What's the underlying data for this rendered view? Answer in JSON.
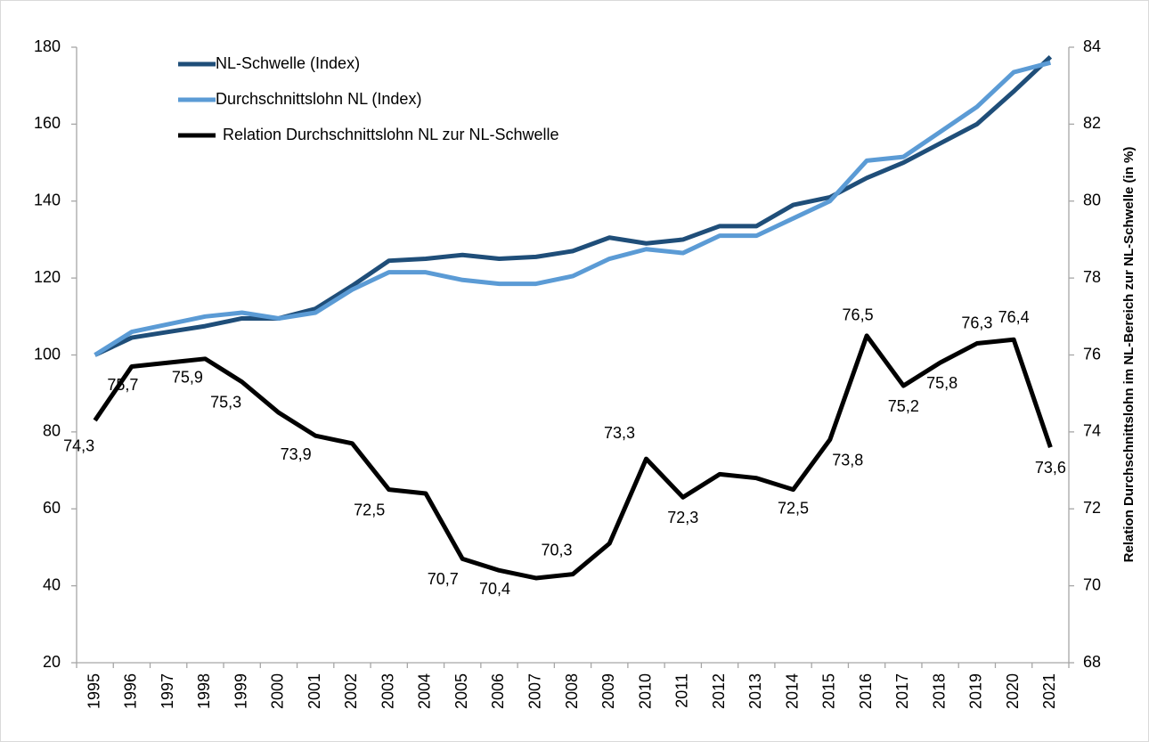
{
  "chart_data": {
    "type": "line",
    "y2label": "Relation Durchschnittslohn im NL-Bereich  zur NL-Schwelle (in %)",
    "categories": [
      "1995",
      "1996",
      "1997",
      "1998",
      "1999",
      "2000",
      "2001",
      "2002",
      "2003",
      "2004",
      "2005",
      "2006",
      "2007",
      "2008",
      "2009",
      "2010",
      "2011",
      "2012",
      "2013",
      "2014",
      "2015",
      "2016",
      "2017",
      "2018",
      "2019",
      "2020",
      "2021"
    ],
    "ylim": [
      20,
      180
    ],
    "yticks": [
      20,
      40,
      60,
      80,
      100,
      120,
      140,
      160,
      180
    ],
    "y2lim": [
      68,
      84
    ],
    "y2ticks": [
      68,
      70,
      72,
      74,
      76,
      78,
      80,
      82,
      84
    ],
    "grid": false,
    "series": [
      {
        "name": "NL-Schwelle (Index)",
        "color": "#1f4e79",
        "values": [
          100,
          104.5,
          106,
          107.5,
          109.5,
          109.5,
          112,
          118,
          124.5,
          125,
          126,
          125,
          125.5,
          127,
          130.5,
          129,
          130,
          133.5,
          133.5,
          139,
          141,
          146,
          150,
          155,
          160,
          168.5,
          177.5
        ]
      },
      {
        "name": "Durchschnittslohn NL (Index)",
        "color": "#5b9bd5",
        "values": [
          100,
          106,
          108,
          110,
          111,
          109.5,
          111,
          117,
          121.5,
          121.5,
          119.5,
          118.5,
          118.5,
          120.5,
          125,
          127.5,
          126.5,
          131,
          131,
          135.5,
          140,
          150.5,
          151.5,
          158,
          164.5,
          173.5,
          176
        ]
      },
      {
        "name": "Relation Durchschnittslohn NL zur NL-Schwelle",
        "color": "#000000",
        "axis": "y2",
        "values": [
          74.3,
          75.7,
          75.8,
          75.9,
          75.3,
          74.5,
          73.9,
          73.7,
          72.5,
          72.4,
          70.7,
          70.4,
          70.2,
          70.3,
          71.1,
          73.3,
          72.3,
          72.9,
          72.8,
          72.5,
          73.8,
          76.5,
          75.2,
          75.8,
          76.3,
          76.4,
          73.6
        ],
        "value_labels": [
          "74,3",
          "75,7",
          null,
          "75,9",
          "75,3",
          null,
          "73,9",
          null,
          "72,5",
          null,
          "70,7",
          "70,4",
          null,
          "70,3",
          null,
          "73,3",
          "72,3",
          null,
          null,
          "72,5",
          "73,8",
          "76,5",
          "75,2",
          "75,8",
          "76,3",
          "76,4",
          "73,6"
        ]
      }
    ]
  }
}
